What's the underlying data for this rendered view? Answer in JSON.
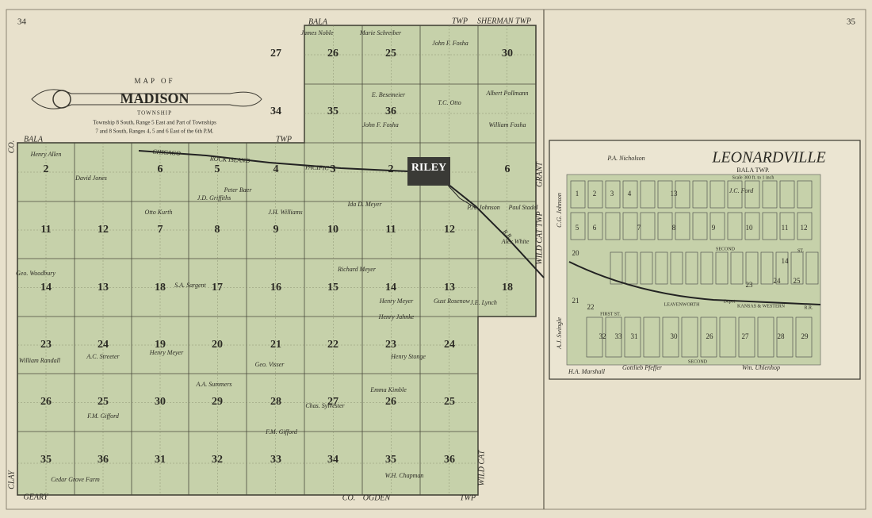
{
  "header": {
    "page_left": "34",
    "page_right": "35"
  },
  "madison": {
    "title_top": "MAP OF",
    "title": "MADISON",
    "title_bottom": "TOWNSHIP",
    "subtitle_lines": [
      "Township 8 South, Range 5 East and Part of Townships",
      "7 and 8 South, Ranges 4, 5 and 6 East of the 6th P.M."
    ],
    "border_labels": [
      "BALA",
      "TWP",
      "BALA",
      "TWP",
      "SHERMAN TWP",
      "GEARY",
      "CO.",
      "OGDEN",
      "TWP",
      "CLAY",
      "WILD CAT",
      "WILD CAT TWP",
      "GRANT",
      "CO."
    ],
    "sections": [
      "27",
      "26",
      "25",
      "30",
      "34",
      "35",
      "36",
      "2",
      "6",
      "5",
      "4",
      "3",
      "2",
      "6",
      "11",
      "12",
      "7",
      "8",
      "9",
      "10",
      "11",
      "12",
      "14",
      "13",
      "18",
      "17",
      "16",
      "15",
      "14",
      "13",
      "18",
      "23",
      "24",
      "19",
      "20",
      "21",
      "22",
      "23",
      "24",
      "26",
      "25",
      "30",
      "29",
      "28",
      "27",
      "26",
      "25",
      "35",
      "36",
      "31",
      "32",
      "33",
      "34",
      "35",
      "36"
    ],
    "owners": [
      "James Noble",
      "Marie Schreiber",
      "John F. Fosha",
      "E. Besemeier",
      "T.C. Otto",
      "John F. Fosha",
      "Albert Pollmann",
      "William Fosha",
      "Henry Allen",
      "David Jones",
      "J.D. Griffiths",
      "Peter Baer",
      "Ida D. Meyer",
      "P.A. Johnson",
      "Paul Stadel",
      "Otto Kurth",
      "J.H. Williams",
      "Alex White",
      "Richard Meyer",
      "J.E. Lynch",
      "Geo. Woodbury",
      "S.A. Sargent",
      "Henry Meyer",
      "Henry Jahnke",
      "Gust Rosenow",
      "William Randall",
      "A.C. Streeter",
      "Henry Meyer",
      "Geo. Visser",
      "Henry Stonge",
      "A.A. Summers",
      "F.M. Gifford",
      "Emma Kimble",
      "Chas. Sylvester",
      "Cedar Grove Farm",
      "F.M. Gifford",
      "W.H. Chapman"
    ],
    "town": "RILEY",
    "railroad_labels": [
      "CHICAGO",
      "ROCK ISLAND",
      "PACIFIC",
      "R.R."
    ]
  },
  "leonardville": {
    "title": "LEONARDVILLE",
    "subtitle": "BALA TWP.",
    "scale": "Scale 300 ft. to 1 inch",
    "owners": [
      "P.A. Nicholson",
      "J.C. Ford",
      "C.G. Johnson",
      "A.J. Swingle",
      "H.A. Marshall",
      "Gottlieb Pfeffer",
      "Wm. Uhlenhop"
    ],
    "streets": [
      "SECOND",
      "ST.",
      "FIRST ST.",
      "SECOND",
      "LEAVENWORTH",
      "KANSAS & WESTERN",
      "R.R.",
      "Depot"
    ],
    "blocks": [
      "1",
      "2",
      "3",
      "4",
      "5",
      "6",
      "7",
      "8",
      "9",
      "10",
      "11",
      "12",
      "13",
      "14",
      "20",
      "21",
      "22",
      "23",
      "24",
      "25",
      "26",
      "27",
      "28",
      "29",
      "30",
      "31",
      "32",
      "33"
    ]
  }
}
